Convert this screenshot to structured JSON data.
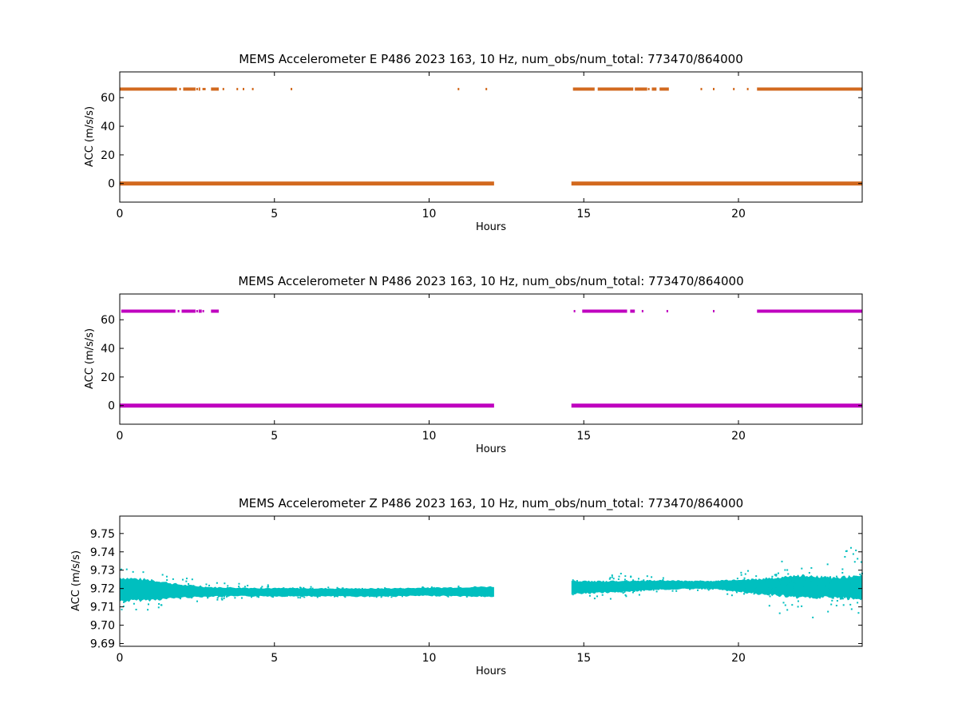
{
  "chart_data": [
    {
      "type": "scatter",
      "title": "MEMS Accelerometer E P486 2023 163, 10 Hz, num_obs/num_total: 773470/864000",
      "xlabel": "Hours",
      "ylabel": "ACC (m/s/s)",
      "xlim": [
        0,
        24
      ],
      "ylim": [
        -13,
        78
      ],
      "xticks": [
        0,
        5,
        10,
        15,
        20
      ],
      "yticks": [
        0,
        20,
        40,
        60
      ],
      "color": "#d2691e",
      "grid": false,
      "series": [
        {
          "baseline": {
            "y": 0.0,
            "x_ranges": [
              [
                0.0,
                12.1
              ],
              [
                14.6,
                24.0
              ]
            ]
          },
          "upper_band": {
            "y": 66.0,
            "x_ranges": [
              [
                0.0,
                1.85
              ],
              [
                2.05,
                2.45
              ],
              [
                2.55,
                2.6
              ],
              [
                2.95,
                3.2
              ],
              [
                14.65,
                15.35
              ],
              [
                15.45,
                16.6
              ],
              [
                16.65,
                17.05
              ],
              [
                17.2,
                17.35
              ],
              [
                17.45,
                17.75
              ],
              [
                20.6,
                24.0
              ]
            ],
            "points_x": [
              1.95,
              2.5,
              2.7,
              2.75,
              3.35,
              3.8,
              4.0,
              4.3,
              5.55,
              10.95,
              11.85,
              17.1,
              18.8,
              19.2,
              19.85,
              20.3
            ]
          }
        }
      ]
    },
    {
      "type": "scatter",
      "title": "MEMS Accelerometer N P486 2023 163, 10 Hz, num_obs/num_total: 773470/864000",
      "xlabel": "Hours",
      "ylabel": "ACC (m/s/s)",
      "xlim": [
        0,
        24
      ],
      "ylim": [
        -13,
        78
      ],
      "xticks": [
        0,
        5,
        10,
        15,
        20
      ],
      "yticks": [
        0,
        20,
        40,
        60
      ],
      "color": "#bf00bf",
      "grid": false,
      "series": [
        {
          "baseline": {
            "y": 0.0,
            "x_ranges": [
              [
                0.0,
                12.1
              ],
              [
                14.6,
                24.0
              ]
            ]
          },
          "upper_band": {
            "y": 66.0,
            "x_ranges": [
              [
                0.05,
                1.8
              ],
              [
                2.0,
                2.45
              ],
              [
                2.55,
                2.65
              ],
              [
                2.95,
                3.2
              ],
              [
                14.95,
                16.4
              ],
              [
                16.5,
                16.65
              ],
              [
                20.6,
                24.0
              ]
            ],
            "points_x": [
              1.9,
              2.5,
              2.7,
              14.7,
              16.9,
              17.7,
              19.2
            ]
          }
        }
      ]
    },
    {
      "type": "scatter",
      "title": "MEMS Accelerometer Z P486 2023 163, 10 Hz, num_obs/num_total: 773470/864000",
      "xlabel": "Hours",
      "ylabel": "ACC (m/s/s)",
      "xlim": [
        0,
        24
      ],
      "ylim": [
        9.6885,
        9.7595
      ],
      "xticks": [
        0,
        5,
        10,
        15,
        20
      ],
      "yticks": [
        9.69,
        9.7,
        9.71,
        9.72,
        9.73,
        9.74,
        9.75
      ],
      "yticklabels": [
        "9.69",
        "9.70",
        "9.71",
        "9.72",
        "9.73",
        "9.74",
        "9.75"
      ],
      "color": "#00bfbf",
      "grid": false,
      "series": [
        {
          "band": [
            {
              "x": 0.0,
              "center": 9.7195,
              "half_width": 0.0065,
              "spread": 0.017
            },
            {
              "x": 1.0,
              "center": 9.7192,
              "half_width": 0.0055,
              "spread": 0.012
            },
            {
              "x": 2.0,
              "center": 9.7185,
              "half_width": 0.0035,
              "spread": 0.01
            },
            {
              "x": 3.0,
              "center": 9.7182,
              "half_width": 0.0025,
              "spread": 0.006
            },
            {
              "x": 5.0,
              "center": 9.718,
              "half_width": 0.0022,
              "spread": 0.004
            },
            {
              "x": 8.0,
              "center": 9.7178,
              "half_width": 0.0022,
              "spread": 0.003
            },
            {
              "x": 10.0,
              "center": 9.7182,
              "half_width": 0.0022,
              "spread": 0.003
            },
            {
              "x": 12.1,
              "center": 9.7183,
              "half_width": 0.0028,
              "spread": 0.003
            },
            {
              "x": 14.6,
              "center": 9.7205,
              "half_width": 0.0035,
              "spread": 0.006
            },
            {
              "x": 16.0,
              "center": 9.721,
              "half_width": 0.003,
              "spread": 0.008
            },
            {
              "x": 17.5,
              "center": 9.722,
              "half_width": 0.0025,
              "spread": 0.005
            },
            {
              "x": 19.0,
              "center": 9.722,
              "half_width": 0.002,
              "spread": 0.004
            },
            {
              "x": 20.6,
              "center": 9.7212,
              "half_width": 0.004,
              "spread": 0.01
            },
            {
              "x": 22.0,
              "center": 9.721,
              "half_width": 0.006,
              "spread": 0.02
            },
            {
              "x": 23.0,
              "center": 9.7205,
              "half_width": 0.0055,
              "spread": 0.015
            },
            {
              "x": 24.0,
              "center": 9.7205,
              "half_width": 0.0065,
              "spread": 0.03
            }
          ],
          "gap": [
            12.1,
            14.6
          ]
        }
      ]
    }
  ]
}
